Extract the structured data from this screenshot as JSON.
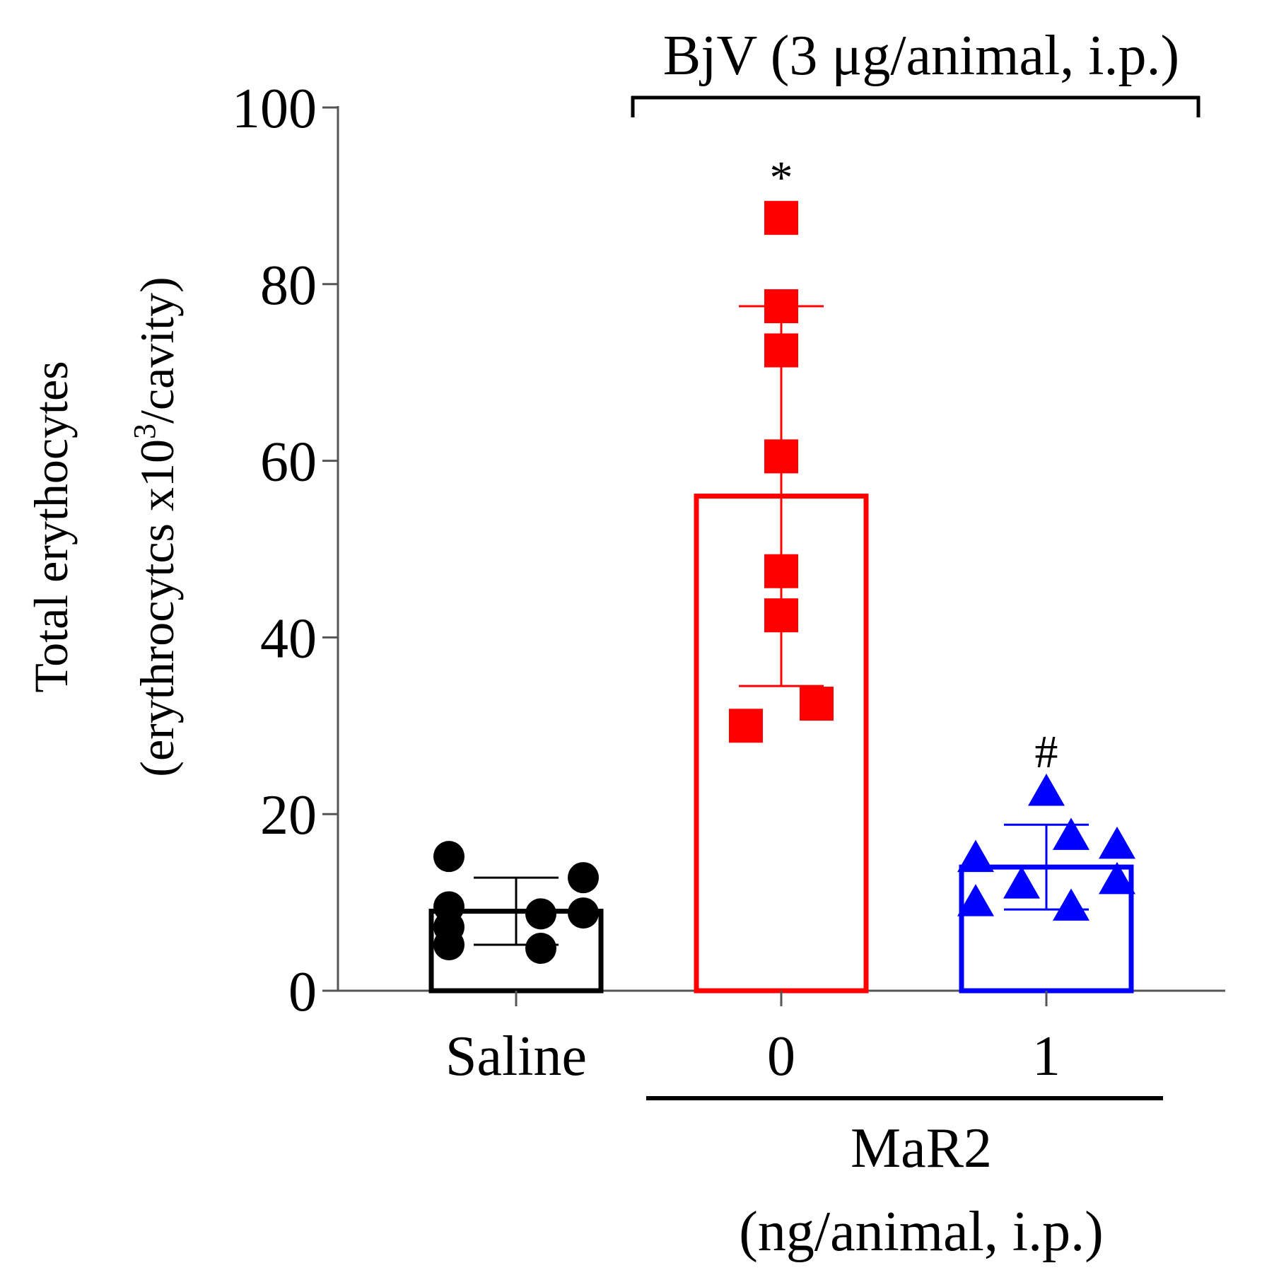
{
  "chart_data": {
    "type": "bar",
    "title": "",
    "ylabel": "Total erythocytes",
    "ylabel_unit_prefix": "(erythrocytcs x10",
    "ylabel_unit_exponent": "3",
    "ylabel_unit_suffix": "/cavity)",
    "ylim": [
      0,
      100
    ],
    "yticks": [
      "0",
      "20",
      "40",
      "60",
      "80",
      "100"
    ],
    "categories": [
      "Saline",
      "0",
      "1"
    ],
    "group_bracket_top": "BjV (3 μg/animal, i.p.)",
    "group_bracket_bottom_line1": "MaR2",
    "group_bracket_bottom_line2": "(ng/animal, i.p.)",
    "colors": [
      "#000000",
      "#ff0000",
      "#0000ff"
    ],
    "markers": [
      "circle",
      "square",
      "triangle"
    ],
    "means": [
      9,
      56,
      14
    ],
    "sd": [
      3.8,
      21.5,
      4.8
    ],
    "significance": [
      "",
      "*",
      "#"
    ],
    "points": [
      [
        15.2,
        12.8,
        9.5,
        8.7,
        7.2,
        5.2,
        4.8,
        8.8
      ],
      [
        87.5,
        77.5,
        72.5,
        60.5,
        47.5,
        42.5,
        32.5,
        30.0
      ],
      [
        22.5,
        17.5,
        16.5,
        15.0,
        12.5,
        12.0,
        10.0,
        9.5
      ]
    ]
  }
}
